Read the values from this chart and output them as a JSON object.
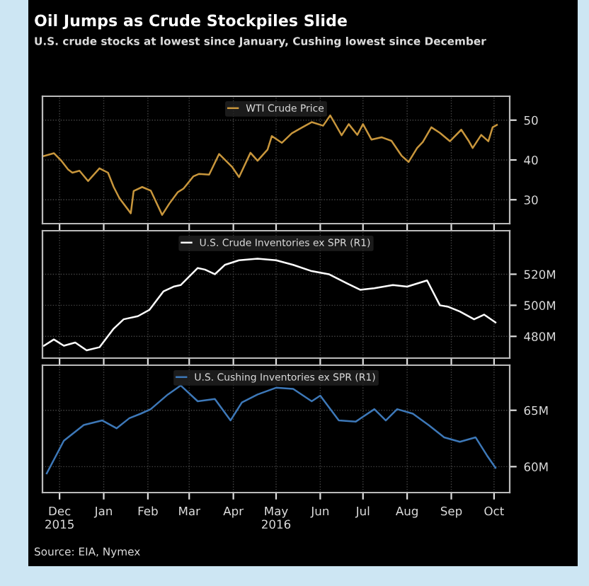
{
  "chart_data": [
    {
      "type": "line",
      "title": "Oil Jumps as Crude Stockpiles Slide",
      "subtitle": "U.S. crude stocks at lowest since January, Cushing lowest since December",
      "legend": "top",
      "grid": true,
      "tick_labels": "y",
      "xlim": [
        "2015-11-19",
        "2016-10-12"
      ],
      "ylim": [
        24,
        56
      ],
      "yticks": [
        30,
        40,
        50
      ],
      "series": [
        {
          "name": "WTI Crude Price",
          "color": "#c8963c",
          "x": [
            "2015-11-20",
            "2015-11-27",
            "2015-12-02",
            "2015-12-07",
            "2015-12-10",
            "2015-12-15",
            "2015-12-21",
            "2015-12-29",
            "2016-01-04",
            "2016-01-08",
            "2016-01-12",
            "2016-01-20",
            "2016-01-22",
            "2016-01-28",
            "2016-02-03",
            "2016-02-11",
            "2016-02-16",
            "2016-02-22",
            "2016-02-26",
            "2016-03-04",
            "2016-03-08",
            "2016-03-15",
            "2016-03-22",
            "2016-03-31",
            "2016-04-05",
            "2016-04-13",
            "2016-04-18",
            "2016-04-25",
            "2016-04-28",
            "2016-05-05",
            "2016-05-12",
            "2016-05-19",
            "2016-05-26",
            "2016-06-03",
            "2016-06-08",
            "2016-06-16",
            "2016-06-21",
            "2016-06-27",
            "2016-07-01",
            "2016-07-07",
            "2016-07-14",
            "2016-07-21",
            "2016-07-28",
            "2016-08-02",
            "2016-08-08",
            "2016-08-12",
            "2016-08-18",
            "2016-08-24",
            "2016-08-31",
            "2016-09-08",
            "2016-09-13",
            "2016-09-16",
            "2016-09-22",
            "2016-09-27",
            "2016-09-30",
            "2016-10-03"
          ],
          "values": [
            41,
            41.7,
            39.9,
            37.6,
            36.8,
            37.3,
            34.7,
            37.9,
            36.8,
            33.2,
            30.4,
            26.6,
            32.2,
            33.2,
            32.3,
            26.2,
            29,
            31.9,
            32.8,
            35.9,
            36.5,
            36.3,
            41.5,
            38.3,
            35.7,
            41.8,
            39.8,
            42.6,
            46,
            44.3,
            46.7,
            48.1,
            49.5,
            48.6,
            51.2,
            46.2,
            49,
            46.3,
            49,
            45.1,
            45.7,
            44.8,
            41.1,
            39.5,
            43,
            44.5,
            48.2,
            46.8,
            44.7,
            47.6,
            44.9,
            43,
            46.3,
            44.7,
            48.2,
            48.8
          ]
        }
      ]
    },
    {
      "type": "line",
      "legend": "top",
      "grid": true,
      "tick_labels": "y",
      "xlim": [
        "2015-11-19",
        "2016-10-12"
      ],
      "ylim": [
        466,
        548
      ],
      "yticks": [
        {
          "value": 520,
          "label": "520M"
        },
        {
          "value": 500,
          "label": "500M"
        },
        {
          "value": 480,
          "label": "480M"
        }
      ],
      "series": [
        {
          "name": "U.S. Crude Inventories ex SPR (R1)",
          "color": "#ffffff",
          "x": [
            "2015-11-20",
            "2015-11-27",
            "2015-12-04",
            "2015-12-12",
            "2015-12-20",
            "2015-12-29",
            "2016-01-08",
            "2016-01-15",
            "2016-01-25",
            "2016-02-02",
            "2016-02-12",
            "2016-02-19",
            "2016-02-24",
            "2016-03-07",
            "2016-03-12",
            "2016-03-19",
            "2016-03-26",
            "2016-04-05",
            "2016-04-18",
            "2016-05-01",
            "2016-05-13",
            "2016-05-26",
            "2016-06-07",
            "2016-06-20",
            "2016-06-29",
            "2016-07-09",
            "2016-07-22",
            "2016-08-01",
            "2016-08-15",
            "2016-08-24",
            "2016-08-30",
            "2016-09-07",
            "2016-09-17",
            "2016-09-24",
            "2016-10-02"
          ],
          "values": [
            474,
            478,
            474,
            476,
            471,
            473,
            485,
            491,
            493,
            497,
            509,
            512,
            513,
            524,
            523,
            520,
            526,
            529,
            530,
            529,
            526,
            522,
            520,
            514,
            510,
            511,
            513,
            512,
            516,
            500,
            499,
            496,
            491,
            494,
            489
          ]
        }
      ]
    },
    {
      "type": "line",
      "legend": "top",
      "grid": true,
      "xlim": [
        "2015-11-19",
        "2016-10-12"
      ],
      "ylim": [
        57.7,
        69
      ],
      "yticks": [
        {
          "value": 65,
          "label": "65M"
        },
        {
          "value": 60,
          "label": "60M"
        }
      ],
      "xticks": [
        {
          "value": "2015-12-01",
          "label": "Dec\n2015"
        },
        {
          "value": "2016-01-01",
          "label": "Jan"
        },
        {
          "value": "2016-02-01",
          "label": "Feb"
        },
        {
          "value": "2016-03-01",
          "label": "Mar"
        },
        {
          "value": "2016-04-01",
          "label": "Apr"
        },
        {
          "value": "2016-05-01",
          "label": "May\n2016"
        },
        {
          "value": "2016-06-01",
          "label": "Jun"
        },
        {
          "value": "2016-07-01",
          "label": "Jul"
        },
        {
          "value": "2016-08-01",
          "label": "Aug"
        },
        {
          "value": "2016-09-01",
          "label": "Sep"
        },
        {
          "value": "2016-10-01",
          "label": "Oct"
        }
      ],
      "annotations": [
        "Source: EIA, Nymex"
      ],
      "series": [
        {
          "name": "U.S. Cushing Inventories ex SPR (R1)",
          "color": "#3d78b8",
          "x": [
            "2015-11-22",
            "2015-12-04",
            "2015-12-18",
            "2015-12-31",
            "2016-01-10",
            "2016-01-19",
            "2016-01-27",
            "2016-02-03",
            "2016-02-15",
            "2016-02-24",
            "2016-03-07",
            "2016-03-19",
            "2016-03-30",
            "2016-04-07",
            "2016-04-18",
            "2016-05-01",
            "2016-05-13",
            "2016-05-26",
            "2016-06-01",
            "2016-06-14",
            "2016-06-26",
            "2016-07-09",
            "2016-07-17",
            "2016-07-25",
            "2016-08-05",
            "2016-08-16",
            "2016-08-27",
            "2016-09-07",
            "2016-09-18",
            "2016-09-26",
            "2016-10-02"
          ],
          "values": [
            59.4,
            62.3,
            63.7,
            64.1,
            63.4,
            64.3,
            64.7,
            65.1,
            66.4,
            67.2,
            65.8,
            66,
            64.1,
            65.7,
            66.4,
            67,
            66.9,
            65.8,
            66.3,
            64.1,
            64,
            65.1,
            64.1,
            65.1,
            64.7,
            63.7,
            62.6,
            62.2,
            62.6,
            61,
            59.9
          ]
        }
      ]
    }
  ]
}
